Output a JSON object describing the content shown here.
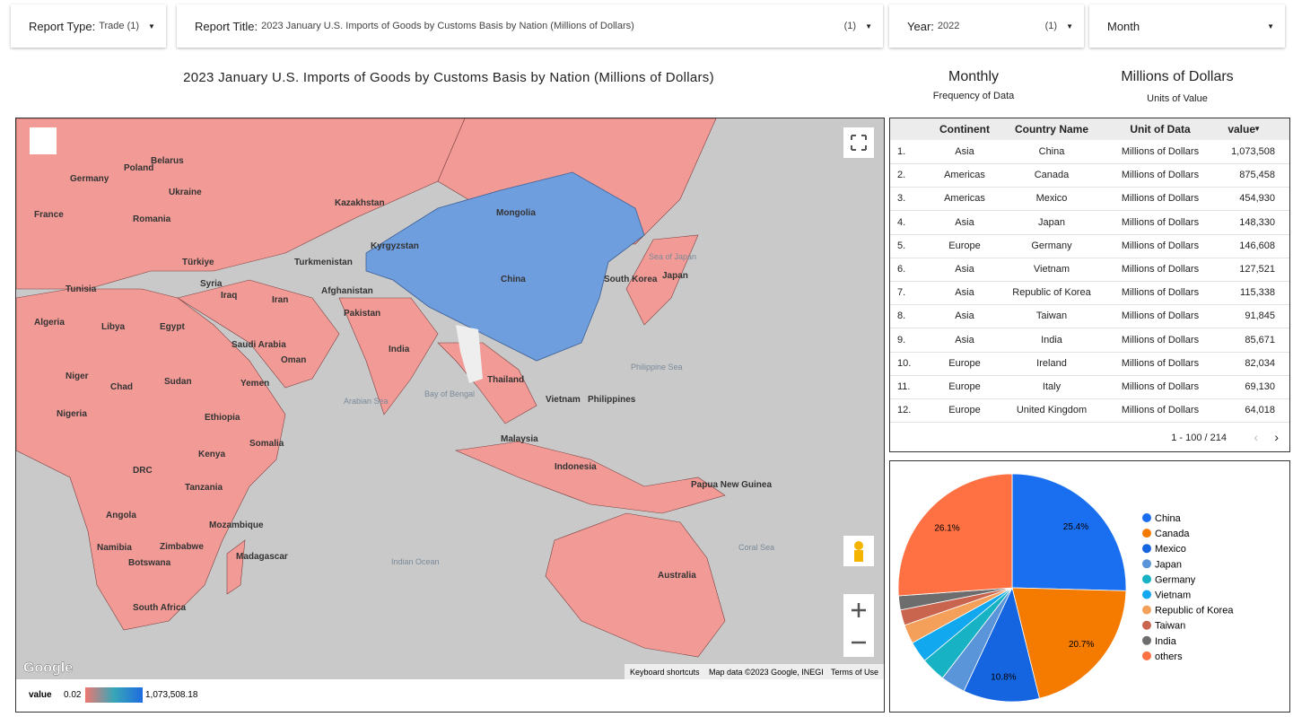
{
  "filters": [
    {
      "label": "Report Type:",
      "value": "Trade (1)"
    },
    {
      "label": "Report Title:",
      "value": "2023 January U.S. Imports of Goods by Customs Basis by Nation (Millions of Dollars)",
      "count": "(1)"
    },
    {
      "label": "Year:",
      "value": "2022",
      "count": "(1)"
    },
    {
      "label": "Month"
    }
  ],
  "header": {
    "title": "2023 January U.S. Imports of Goods by Customs Basis by Nation (Millions of Dollars)",
    "frequency": "Monthly",
    "frequency_caption": "Frequency of Data",
    "units": "Millions of Dollars",
    "units_caption": "Units of Value"
  },
  "map": {
    "labels": [
      "Poland",
      "Belarus",
      "Germany",
      "Ukraine",
      "France",
      "Romania",
      "Kazakhstan",
      "Mongolia",
      "Türkiye",
      "Turkmenistan",
      "Kyrgyzstan",
      "Tunisia",
      "Syria",
      "Iraq",
      "Iran",
      "Afghanistan",
      "Pakistan",
      "Algeria",
      "Libya",
      "Egypt",
      "Saudi Arabia",
      "Oman",
      "India",
      "China",
      "South Korea",
      "Japan",
      "Niger",
      "Chad",
      "Sudan",
      "Yemen",
      "Nigeria",
      "Ethiopia",
      "Somalia",
      "Kenya",
      "DRC",
      "Tanzania",
      "Angola",
      "Mozambique",
      "Namibia",
      "Zimbabwe",
      "Botswana",
      "Madagascar",
      "South Africa",
      "Thailand",
      "Vietnam",
      "Philippines",
      "Malaysia",
      "Indonesia",
      "Papua New Guinea",
      "Australia",
      "Indian Ocean",
      "Arabian Sea",
      "Bay of Bengal",
      "Philippine Sea",
      "Coral Sea",
      "Sea of Japan"
    ],
    "google": "Google",
    "attribution": [
      "Keyboard shortcuts",
      "Map data ©2023 Google, INEGI",
      "Terms of Use"
    ],
    "legend": {
      "title": "value",
      "min": "0.02",
      "max": "1,073,508.18"
    }
  },
  "table": {
    "columns": [
      "Continent",
      "Country Name",
      "Unit of Data",
      "value"
    ],
    "rows": [
      [
        "1.",
        "Asia",
        "China",
        "Millions of Dollars",
        "1,073,508"
      ],
      [
        "2.",
        "Americas",
        "Canada",
        "Millions of Dollars",
        "875,458"
      ],
      [
        "3.",
        "Americas",
        "Mexico",
        "Millions of Dollars",
        "454,930"
      ],
      [
        "4.",
        "Asia",
        "Japan",
        "Millions of Dollars",
        "148,330"
      ],
      [
        "5.",
        "Europe",
        "Germany",
        "Millions of Dollars",
        "146,608"
      ],
      [
        "6.",
        "Asia",
        "Vietnam",
        "Millions of Dollars",
        "127,521"
      ],
      [
        "7.",
        "Asia",
        "Republic of Korea",
        "Millions of Dollars",
        "115,338"
      ],
      [
        "8.",
        "Asia",
        "Taiwan",
        "Millions of Dollars",
        "91,845"
      ],
      [
        "9.",
        "Asia",
        "India",
        "Millions of Dollars",
        "85,671"
      ],
      [
        "10.",
        "Europe",
        "Ireland",
        "Millions of Dollars",
        "82,034"
      ],
      [
        "11.",
        "Europe",
        "Italy",
        "Millions of Dollars",
        "69,130"
      ],
      [
        "12.",
        "Europe",
        "United Kingdom",
        "Millions of Dollars",
        "64,018"
      ]
    ],
    "pagination": "1 - 100 / 214"
  },
  "chart_data": {
    "type": "pie",
    "categories": [
      "China",
      "Canada",
      "Mexico",
      "Japan",
      "Germany",
      "Vietnam",
      "Republic of Korea",
      "Taiwan",
      "India",
      "others"
    ],
    "values": [
      25.4,
      20.7,
      10.8,
      3.5,
      3.5,
      3.0,
      2.7,
      2.2,
      2.0,
      26.1
    ],
    "value_labels": [
      "25.4%",
      "20.7%",
      "10.8%",
      null,
      null,
      null,
      null,
      null,
      null,
      "26.1%"
    ],
    "colors": [
      "#1a6ff0",
      "#f47b00",
      "#1565e0",
      "#5b95d9",
      "#17b3c4",
      "#12a8ef",
      "#f5a05a",
      "#c9644e",
      "#6d6d6d",
      "#ff7043"
    ]
  }
}
